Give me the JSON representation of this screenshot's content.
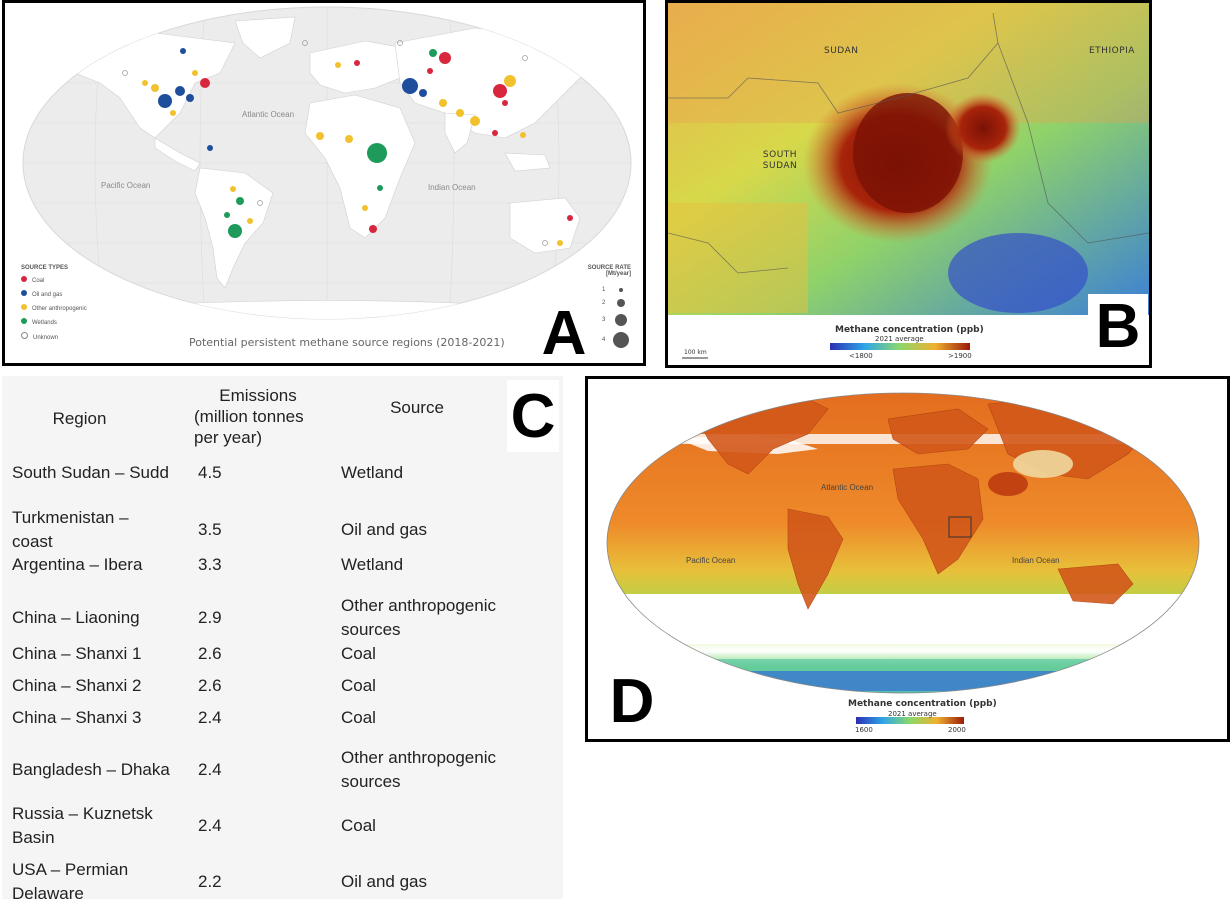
{
  "panels": {
    "a": {
      "letter": "A",
      "title": "Potential persistent methane source regions (2018-2021)",
      "oceans": [
        "Atlantic Ocean",
        "Pacific Ocean",
        "Indian Ocean"
      ],
      "legend": {
        "heading": "SOURCE TYPES",
        "items": [
          {
            "label": "Coal",
            "color": "#d7263d"
          },
          {
            "label": "Oil and gas",
            "color": "#1f4e9c"
          },
          {
            "label": "Other anthropogenic",
            "color": "#f2c12e"
          },
          {
            "label": "Wetlands",
            "color": "#1e9a5a"
          },
          {
            "label": "Unknown",
            "color": "#ffffff"
          }
        ]
      },
      "rate_legend": {
        "heading": "SOURCE RATE",
        "unit": "[Mt/year]",
        "values": [
          "1",
          "2",
          "3",
          "4"
        ]
      }
    },
    "b": {
      "letter": "B",
      "countries": [
        "SUDAN",
        "ETHIOPIA",
        "SOUTH SUDAN"
      ],
      "colorbar_title": "Methane concentration (ppb)",
      "colorbar_subtitle": "2021 average",
      "colorbar_min": "<1800",
      "colorbar_max": ">1900",
      "scale": "100 km"
    },
    "c": {
      "letter": "C",
      "headers": {
        "region": "Region",
        "emissions": [
          "Emissions",
          "(million tonnes",
          "per year)"
        ],
        "source": "Source"
      },
      "rows": [
        {
          "region": [
            "South Sudan – Sudd"
          ],
          "emissions": "4.5",
          "source": [
            "Wetland"
          ]
        },
        {
          "region": [
            "Turkmenistan –",
            "coast"
          ],
          "emissions": "3.5",
          "source": [
            "Oil and gas"
          ]
        },
        {
          "region": [
            "Argentina – Ibera"
          ],
          "emissions": "3.3",
          "source": [
            "Wetland"
          ]
        },
        {
          "region": [
            "China – Liaoning"
          ],
          "emissions": "2.9",
          "source": [
            "Other anthropogenic",
            "sources"
          ]
        },
        {
          "region": [
            "China – Shanxi 1"
          ],
          "emissions": "2.6",
          "source": [
            "Coal"
          ]
        },
        {
          "region": [
            "China – Shanxi 2"
          ],
          "emissions": "2.6",
          "source": [
            "Coal"
          ]
        },
        {
          "region": [
            "China – Shanxi 3"
          ],
          "emissions": "2.4",
          "source": [
            "Coal"
          ]
        },
        {
          "region": [
            "Bangladesh – Dhaka"
          ],
          "emissions": "2.4",
          "source": [
            "Other anthropogenic",
            "sources"
          ]
        },
        {
          "region": [
            "Russia – Kuznetsk",
            "Basin"
          ],
          "emissions": "2.4",
          "source": [
            "Coal"
          ]
        },
        {
          "region": [
            "USA – Permian",
            "Delaware"
          ],
          "emissions": "2.2",
          "source": [
            "Oil and gas"
          ]
        }
      ]
    },
    "d": {
      "letter": "D",
      "oceans": [
        "Atlantic Ocean",
        "Pacific Ocean",
        "Indian Ocean"
      ],
      "colorbar_title": "Methane concentration (ppb)",
      "colorbar_subtitle": "2021 average",
      "colorbar_min": "1600",
      "colorbar_max": "2000"
    }
  }
}
